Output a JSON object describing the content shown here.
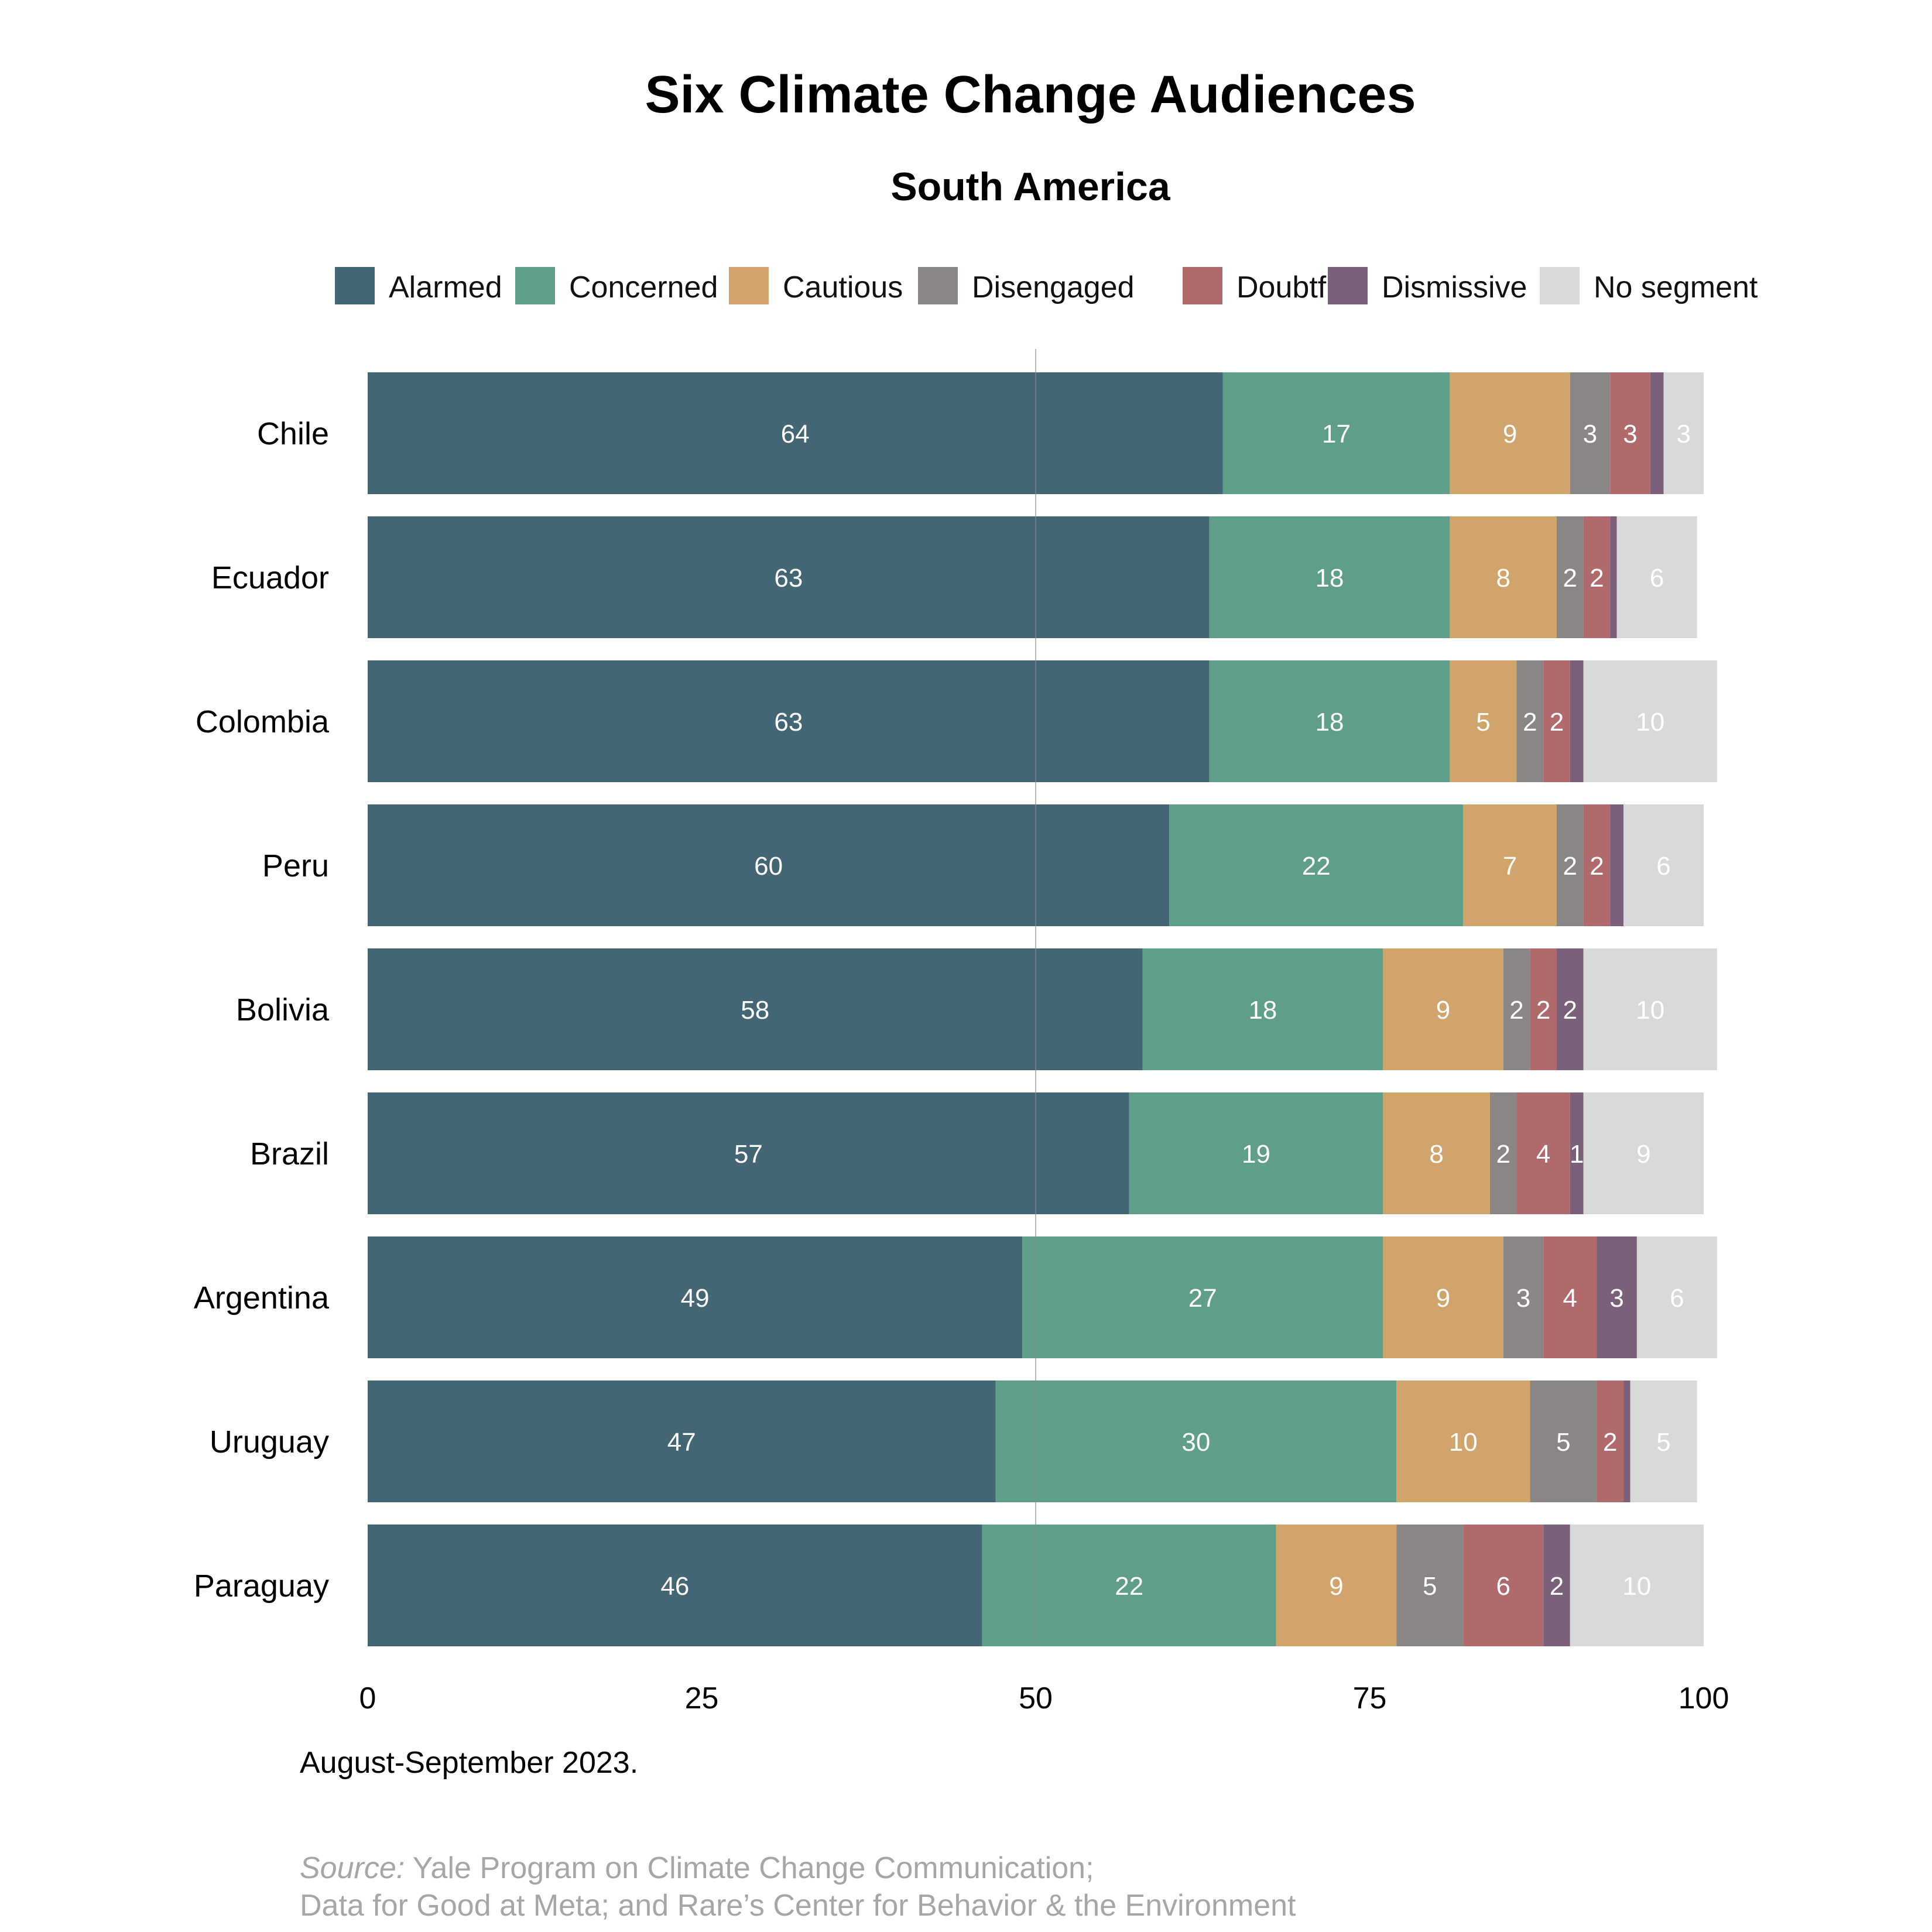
{
  "chart_data": {
    "type": "bar",
    "orientation": "horizontal",
    "stacked": true,
    "title": "Six Climate Change Audiences",
    "subtitle": "South America",
    "categories": [
      "Chile",
      "Ecuador",
      "Colombia",
      "Peru",
      "Bolivia",
      "Brazil",
      "Argentina",
      "Uruguay",
      "Paraguay"
    ],
    "series": [
      {
        "name": "Alarmed",
        "color": "#436674",
        "values": [
          64,
          63,
          63,
          60,
          58,
          57,
          49,
          47,
          46
        ]
      },
      {
        "name": "Concerned",
        "color": "#5f9e89",
        "values": [
          17,
          18,
          18,
          22,
          18,
          19,
          27,
          30,
          22
        ]
      },
      {
        "name": "Cautious",
        "color": "#d1a46b",
        "values": [
          9,
          8,
          5,
          7,
          9,
          8,
          9,
          10,
          9
        ]
      },
      {
        "name": "Disengaged",
        "color": "#8b8686",
        "values": [
          3,
          2,
          2,
          2,
          2,
          2,
          3,
          5,
          5
        ]
      },
      {
        "name": "Doubtful",
        "color": "#b06a6c",
        "values": [
          3,
          2,
          2,
          2,
          2,
          4,
          4,
          2,
          6
        ]
      },
      {
        "name": "Dismissive",
        "color": "#7b6079",
        "values": [
          1,
          0.5,
          1,
          1,
          2,
          1,
          3,
          0.5,
          2
        ]
      },
      {
        "name": "No segment",
        "color": "#d9d9d9",
        "values": [
          3,
          6,
          10,
          6,
          10,
          9,
          6,
          5,
          10
        ]
      }
    ],
    "hidden_labels": [
      {
        "category": "Chile",
        "series": "Dismissive"
      },
      {
        "category": "Ecuador",
        "series": "Dismissive"
      },
      {
        "category": "Colombia",
        "series": "Dismissive"
      },
      {
        "category": "Peru",
        "series": "Dismissive"
      },
      {
        "category": "Uruguay",
        "series": "Dismissive"
      }
    ],
    "xlim": [
      0,
      100
    ],
    "xticks": [
      0,
      25,
      50,
      75,
      100
    ],
    "xlabel": "",
    "ylabel": "",
    "grid": "vertical line at 50",
    "legend_position": "top",
    "note": "August-September 2023.",
    "source_prefix": "Source:",
    "source_line1": " Yale Program on Climate Change Communication;",
    "source_line2": "Data for Good at Meta; and Rare’s Center for Behavior & the Environment"
  }
}
